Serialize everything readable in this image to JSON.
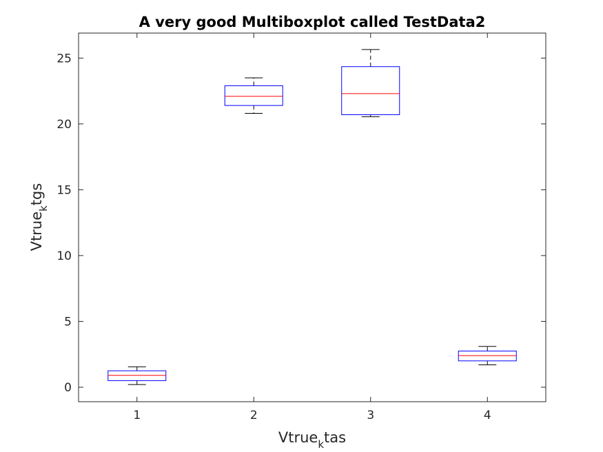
{
  "chart_data": {
    "type": "boxplot",
    "title": "A very good Multiboxplot called TestData2",
    "xlabel": {
      "base": "Vtrue",
      "sub": "k",
      "rest": "tas"
    },
    "ylabel": {
      "base": "Vtrue",
      "sub": "k",
      "rest": "tgs"
    },
    "categories": [
      "1",
      "2",
      "3",
      "4"
    ],
    "xlim": [
      0.5,
      4.5
    ],
    "ylim": [
      -1.1,
      26.9
    ],
    "yticks": [
      0,
      5,
      10,
      15,
      20,
      25
    ],
    "grid": false,
    "legend": "none",
    "boxes": [
      {
        "category": "1",
        "min": 0.2,
        "q1": 0.5,
        "median": 0.9,
        "q3": 1.25,
        "max": 1.55
      },
      {
        "category": "2",
        "min": 20.8,
        "q1": 21.4,
        "median": 22.1,
        "q3": 22.9,
        "max": 23.5
      },
      {
        "category": "3",
        "min": 20.55,
        "q1": 20.7,
        "median": 22.3,
        "q3": 24.35,
        "max": 25.65
      },
      {
        "category": "4",
        "min": 1.7,
        "q1": 2.0,
        "median": 2.4,
        "q3": 2.75,
        "max": 3.1
      }
    ],
    "colors": {
      "box": "#0000ff",
      "median": "#ff0000",
      "whisker": "#000000",
      "axis": "#262626"
    }
  }
}
